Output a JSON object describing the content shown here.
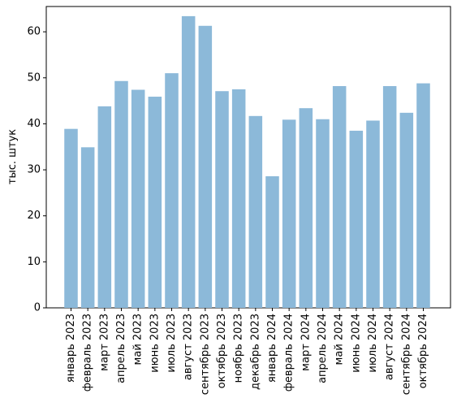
{
  "chart_data": {
    "type": "bar",
    "title": "",
    "xlabel": "",
    "ylabel": "тыс. штук",
    "categories": [
      "январь 2023",
      "февраль 2023",
      "март 2023",
      "апрель 2023",
      "май 2023",
      "июнь 2023",
      "июль 2023",
      "август 2023",
      "сентябрь 2023",
      "октябрь 2023",
      "ноябрь 2023",
      "декабрь 2023",
      "январь 2024",
      "февраль 2024",
      "март 2024",
      "апрель 2024",
      "май 2024",
      "июнь 2024",
      "июль 2024",
      "август 2024",
      "сентябрь 2024",
      "октябрь 2024"
    ],
    "values": [
      38.9,
      34.9,
      43.8,
      49.3,
      47.4,
      45.9,
      51.0,
      63.4,
      61.3,
      47.1,
      47.5,
      41.7,
      28.6,
      40.9,
      43.4,
      41.0,
      48.2,
      38.5,
      40.7,
      48.2,
      42.4,
      48.8
    ],
    "ylim": [
      0,
      65.5
    ],
    "yticks": [
      0,
      10,
      20,
      30,
      40,
      50,
      60
    ],
    "bar_color": "#8cb9d9",
    "grid": false,
    "legend": "none"
  }
}
